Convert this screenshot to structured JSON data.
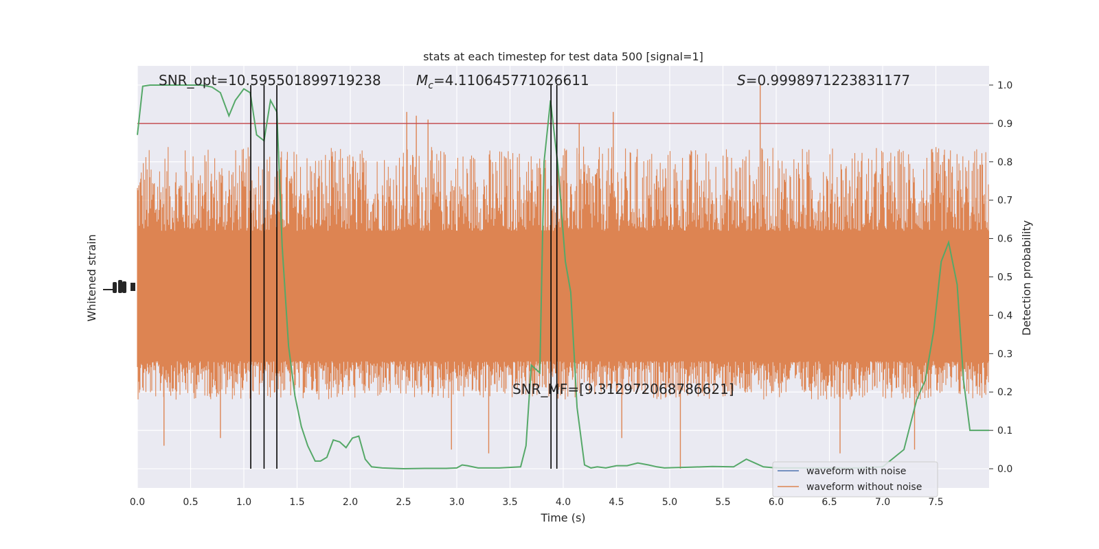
{
  "chart_data": {
    "type": "line",
    "title": "stats at each timestep for test data 500 [signal=1]",
    "xlabel": "Time (s)",
    "ylabel_left": "Whitened strain",
    "ylabel_right": "Detection probability",
    "xlim": [
      0.0,
      8.0
    ],
    "ylim_right": [
      -0.05,
      1.05
    ],
    "x_ticks": [
      "0.0",
      "0.5",
      "1.0",
      "1.5",
      "2.0",
      "2.5",
      "3.0",
      "3.5",
      "4.0",
      "4.5",
      "5.0",
      "5.5",
      "6.0",
      "6.5",
      "7.0",
      "7.5"
    ],
    "y_ticks_right": [
      "0.0",
      "0.1",
      "0.2",
      "0.3",
      "0.4",
      "0.5",
      "0.6",
      "0.7",
      "0.8",
      "0.9",
      "1.0"
    ],
    "grid": true,
    "legend_position": "lower right",
    "series": [
      {
        "name": "waveform with noise",
        "color": "#4c72b0"
      },
      {
        "name": "waveform without noise",
        "color": "#dd8452"
      }
    ],
    "strain_noise_envelope": {
      "core_low": 0.28,
      "core_high": 0.62,
      "typical_peak_high": 0.84,
      "typical_peak_low": 0.18
    },
    "strain_spikes": [
      {
        "x": 2.53,
        "y": 0.93
      },
      {
        "x": 2.62,
        "y": 0.92
      },
      {
        "x": 2.73,
        "y": 0.91
      },
      {
        "x": 4.15,
        "y": 0.9
      },
      {
        "x": 4.47,
        "y": 0.93
      },
      {
        "x": 5.85,
        "y": 1.0
      },
      {
        "x": 5.1,
        "y": 0.0
      },
      {
        "x": 6.6,
        "y": 0.04
      },
      {
        "x": 3.3,
        "y": 0.04
      },
      {
        "x": 2.95,
        "y": 0.05
      },
      {
        "x": 0.25,
        "y": 0.06
      },
      {
        "x": 4.55,
        "y": 0.08
      },
      {
        "x": 0.78,
        "y": 0.08
      },
      {
        "x": 7.3,
        "y": 0.05
      }
    ],
    "detection_probability": {
      "color": "#55a868",
      "x": [
        0.0,
        0.05,
        0.12,
        0.2,
        0.3,
        0.4,
        0.5,
        0.6,
        0.7,
        0.78,
        0.86,
        0.92,
        1.0,
        1.06,
        1.12,
        1.19,
        1.25,
        1.31,
        1.36,
        1.42,
        1.48,
        1.54,
        1.6,
        1.67,
        1.72,
        1.78,
        1.84,
        1.9,
        1.96,
        2.02,
        2.08,
        2.14,
        2.2,
        2.3,
        2.5,
        2.7,
        2.9,
        3.0,
        3.05,
        3.1,
        3.2,
        3.4,
        3.6,
        3.65,
        3.7,
        3.78,
        3.82,
        3.88,
        3.95,
        4.02,
        4.07,
        4.13,
        4.2,
        4.26,
        4.32,
        4.4,
        4.5,
        4.6,
        4.7,
        4.8,
        4.88,
        4.95,
        5.05,
        5.2,
        5.4,
        5.6,
        5.72,
        5.8,
        5.88,
        5.96,
        6.05,
        6.2,
        6.4,
        6.6,
        6.8,
        7.0,
        7.2,
        7.32,
        7.4,
        7.48,
        7.55,
        7.62,
        7.7,
        7.76,
        7.82,
        7.88,
        7.94,
        8.0
      ],
      "y": [
        0.87,
        0.997,
        1.0,
        1.0,
        1.0,
        1.0,
        1.0,
        1.0,
        0.995,
        0.98,
        0.92,
        0.96,
        0.99,
        0.98,
        0.87,
        0.855,
        0.96,
        0.93,
        0.58,
        0.32,
        0.19,
        0.11,
        0.06,
        0.02,
        0.02,
        0.03,
        0.075,
        0.07,
        0.055,
        0.08,
        0.085,
        0.025,
        0.005,
        0.002,
        0.0,
        0.001,
        0.001,
        0.002,
        0.01,
        0.008,
        0.002,
        0.002,
        0.005,
        0.06,
        0.27,
        0.25,
        0.8,
        0.96,
        0.79,
        0.54,
        0.46,
        0.16,
        0.01,
        0.002,
        0.005,
        0.002,
        0.008,
        0.008,
        0.015,
        0.01,
        0.005,
        0.002,
        0.003,
        0.004,
        0.006,
        0.005,
        0.025,
        0.015,
        0.005,
        0.003,
        0.002,
        0.002,
        0.002,
        0.002,
        0.002,
        0.005,
        0.05,
        0.18,
        0.23,
        0.36,
        0.54,
        0.59,
        0.48,
        0.23,
        0.1,
        0.1,
        0.1,
        0.1
      ]
    },
    "threshold_line": {
      "y": 0.9,
      "color": "#c44e52"
    },
    "vertical_lines_x": [
      1.065,
      1.19,
      1.31,
      3.885,
      3.94
    ],
    "annotations": {
      "snr_opt": "SNR_opt=10.595501899719238",
      "mc_symbol": "M",
      "mc_sub": "c",
      "mc_value": "=4.110645771026611",
      "s_symbol": "S",
      "s_value": "=0.9998971223831177",
      "snr_mf": "SNR_MF=[9.312972068786621]"
    }
  }
}
